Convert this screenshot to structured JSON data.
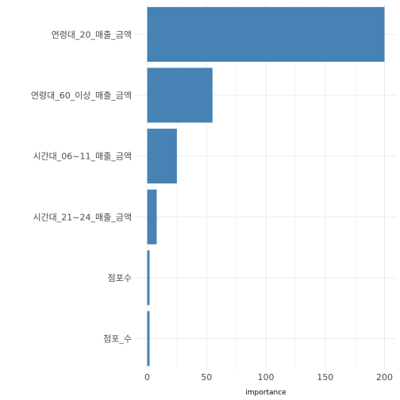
{
  "chart_data": {
    "type": "bar",
    "orientation": "horizontal",
    "categories": [
      "연령대_20_매출_금액",
      "연령대_60_이상_매출_금액",
      "시간대_06~11_매출_금액",
      "시간대_21~24_매출_금액",
      "점포수",
      "점포_수"
    ],
    "values": [
      200,
      55,
      25,
      8,
      2,
      2
    ],
    "xlabel": "importance",
    "ylabel": "",
    "xlim": [
      0,
      200
    ],
    "xticks": [
      0,
      50,
      100,
      150,
      200
    ],
    "grid": true,
    "bar_color": "#4682b4"
  }
}
